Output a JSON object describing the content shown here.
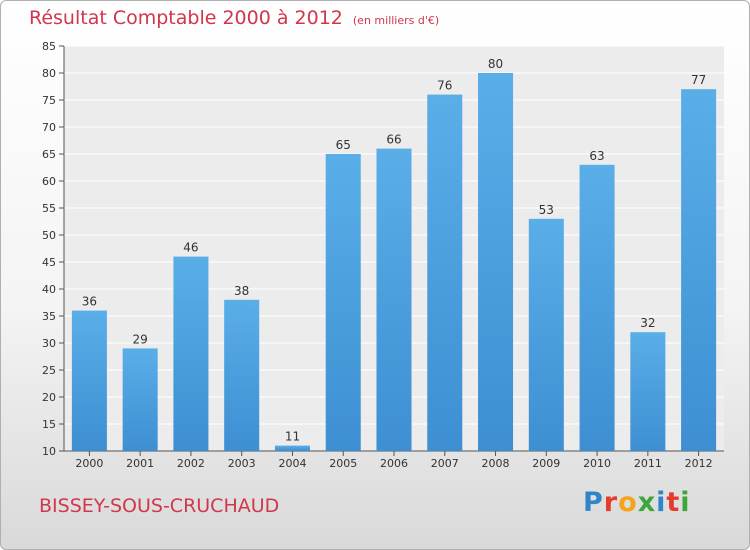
{
  "header": {
    "title": "Résultat Comptable 2000 à 2012",
    "subtitle": "(en milliers d'€)"
  },
  "footer": {
    "place": "BISSEY-SOUS-CRUCHAUD",
    "logo": {
      "text": "Proxiti",
      "letters": [
        {
          "char": "P",
          "color": "#2e86c8"
        },
        {
          "char": "r",
          "color": "#e53b2c"
        },
        {
          "char": "o",
          "color": "#f5a31a"
        },
        {
          "char": "x",
          "color": "#3aa63c"
        },
        {
          "char": "i",
          "color": "#2e86c8"
        },
        {
          "char": "t",
          "color": "#e53b2c"
        },
        {
          "char": "i",
          "color": "#3aa63c"
        }
      ]
    }
  },
  "chart_data": {
    "type": "bar",
    "title": "Résultat Comptable 2000 à 2012",
    "subtitle": "(en milliers d'€)",
    "xlabel": "",
    "ylabel": "",
    "categories": [
      "2000",
      "2001",
      "2002",
      "2003",
      "2004",
      "2005",
      "2006",
      "2007",
      "2008",
      "2009",
      "2010",
      "2011",
      "2012"
    ],
    "values": [
      36,
      29,
      46,
      38,
      11,
      65,
      66,
      76,
      80,
      53,
      63,
      32,
      77
    ],
    "value_labels": [
      "36",
      "29",
      "46",
      "38",
      "11",
      "65",
      "66",
      "76",
      "80",
      "53",
      "63",
      "32",
      "77"
    ],
    "ylim": [
      10,
      85
    ],
    "yticks": [
      10,
      15,
      20,
      25,
      30,
      35,
      40,
      45,
      50,
      55,
      60,
      65,
      70,
      75,
      80,
      85
    ],
    "grid": true,
    "bar_color": "#3d8fd2",
    "bar_color_light": "#5aaee8"
  }
}
